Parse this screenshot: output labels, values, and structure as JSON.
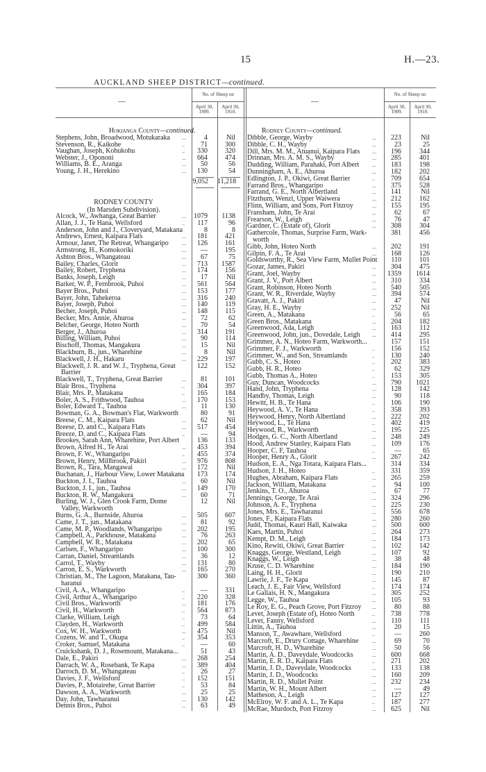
{
  "header": {
    "page_number": "15",
    "doc_ref": "H.—23.",
    "title": "AUCKLAND SHEEP DISTRICT",
    "title_suffix": "—continued."
  },
  "table_header": {
    "name_col": "—",
    "group": "No. of Sheep on",
    "col1_line1": "April 30,",
    "col1_line2": "1909.",
    "col2_line1": "April 30,",
    "col2_line2": "1910."
  },
  "left": {
    "heading_main": "Hokianga County",
    "heading_suffix": "—continued.",
    "rows": [
      [
        "Stephens, John, Broadwood, Motukaraka",
        "...",
        "4",
        "Nil"
      ],
      [
        "Stevenson, R., Kaikohe",
        "..",
        "71",
        "300"
      ],
      [
        "Vaughan, Joseph, Kohukohu",
        "..",
        "330",
        "320"
      ],
      [
        "Webster, J., Opononi",
        "...",
        "664",
        "474"
      ],
      [
        "Williams, B. E., Aranga",
        "...",
        "50",
        "56"
      ],
      [
        "Young, J. H., Herekino",
        "...",
        "130",
        "54"
      ]
    ],
    "total": [
      "9,052",
      "11,218"
    ],
    "county": "RODNEY COUNTY",
    "subdivision": "(In Marsden Subdivision).",
    "rows2": [
      [
        "Alcock, W., Awhanga, Great Barrier",
        "...",
        "1079",
        "1138"
      ],
      [
        "Allan, J. J., Te Hana, Wellsford",
        "..",
        "117",
        "96"
      ],
      [
        "Anderson, John and J., Cloveryard, Matakana",
        "",
        "8",
        "8"
      ],
      [
        "Andrews, Ernest, Kaipara Flats",
        "...",
        "181",
        "421"
      ],
      [
        "Armour, Janet, The Retreat, Whangaripo",
        "...",
        "126",
        "161"
      ],
      [
        "Armstrong, H., Komokoriki",
        "...",
        "—",
        "195"
      ],
      [
        "Ashton Bros., Whangateau",
        "...",
        "67",
        "75"
      ],
      [
        "Bailey, Charles, Glorit",
        "...",
        "713",
        "1587"
      ],
      [
        "Bailey, Robert, Tryphena",
        "...",
        "174",
        "156"
      ],
      [
        "Banks, Joseph, Leigh",
        "...",
        "17",
        "Nil"
      ],
      [
        "Barker, W. P., Fernbrook, Puhoi",
        "...",
        "561",
        "564"
      ],
      [
        "Bayer Bros., Puhoi",
        "...",
        "153",
        "177"
      ],
      [
        "Bayer, John, Tahekeroa",
        "...",
        "316",
        "240"
      ],
      [
        "Bayer, Joseph, Puhoi",
        "...",
        "140",
        "119"
      ],
      [
        "Becher, Joseph, Puhoi",
        "...",
        "148",
        "115"
      ],
      [
        "Becker, Mrs. Annie, Ahuroa",
        "...",
        "72",
        "62"
      ],
      [
        "Belcher, George, Hoteo North",
        "...",
        "70",
        "54"
      ],
      [
        "Berger, J., Ahuroa",
        "...",
        "314",
        "191"
      ],
      [
        "Billing, William, Puhoi",
        "...",
        "90",
        "114"
      ],
      [
        "Bischoff, Thomas, Mangakura",
        "...",
        "15",
        "Nil"
      ],
      [
        "Blackburn, B., jun., Wharehine",
        "...",
        "8",
        "Nil"
      ],
      [
        "Blackwell, J. H., Hakaru",
        "...",
        "229",
        "197"
      ],
      [
        "Blackwell, J. R. and W. J., Tryphena, Great",
        "",
        "122",
        "152",
        "Barrier"
      ],
      [
        "Blackwell, T., Tryphena, Great Barrier",
        "...",
        "81",
        "101"
      ],
      [
        "Blair Bros., Tryphena",
        "..",
        "304",
        "397"
      ],
      [
        "Blair, Mrs. P., Matakana",
        "..",
        "165",
        "184"
      ],
      [
        "Boler, A. S., Frithwood, Tauhoa",
        "...",
        "170",
        "153"
      ],
      [
        "Boler, Edward T., Tauhoa",
        "...",
        "11",
        "130"
      ],
      [
        "Bowman, G. A., Bowman's Flat, Warkworth",
        "",
        "80",
        "91"
      ],
      [
        "Breese, C. M., Kaipara Flats",
        "...",
        "62",
        "Nil"
      ],
      [
        "Breese, D. and C., Kaipara Flats",
        "...",
        "517",
        "454"
      ],
      [
        "Breeze, D. and C., Kaipara Flats",
        "..",
        "—",
        "94"
      ],
      [
        "Brookes, Sarah Ann, Wharehine, Port Albert",
        "",
        "136",
        "133"
      ],
      [
        "Brown, Alfred H., Te Arai",
        "...",
        "453",
        "394"
      ],
      [
        "Brown, F. W., Whangaripo",
        "..",
        "455",
        "374"
      ],
      [
        "Brown, Henry, Millbrook, Pakiri",
        "...",
        "976",
        "808"
      ],
      [
        "Brown, R., Tara, Mangawai",
        "...",
        "172",
        "Nil"
      ],
      [
        "Buchanan, J., Harbour View, Lower Matakana",
        "",
        "173",
        "174"
      ],
      [
        "Buckton, J. I., Tauhoa",
        "...",
        "60",
        "Nil"
      ],
      [
        "Buckton, J. I., jun., Tauhoa",
        "...",
        "149",
        "170"
      ],
      [
        "Buckton, R. W., Mangakura",
        "...",
        "60",
        "71"
      ],
      [
        "Burling, W. J., Glen Crook Farm, Dome",
        "",
        "12",
        "Nil",
        "Valley, Warkworth"
      ],
      [
        "Burns, G. A., Burnside, Ahuroa",
        "...",
        "505",
        "607"
      ],
      [
        "Came, J. T., jun., Matakana",
        "...",
        "81",
        "92"
      ],
      [
        "Came, M. P., Woodlands, Whangaripo",
        "...",
        "202",
        "195"
      ],
      [
        "Campbell, A., Parkhouse, Matakana",
        "...",
        "76",
        "263"
      ],
      [
        "Campbell, W. R., Matakana",
        "...",
        "202",
        "65"
      ],
      [
        "Carlsen, F., Whangaripo",
        "...",
        "100",
        "300"
      ],
      [
        "Carran, Daniel, Streamlands",
        "...",
        "36",
        "12"
      ],
      [
        "Carrol, T., Wayby",
        "...",
        "131",
        "80"
      ],
      [
        "Carron, E. S., Warkworth",
        "...",
        "165",
        "270"
      ],
      [
        "Christian, M., The Lagoon, Matakana, Tau-",
        "",
        "300",
        "360",
        "haranui"
      ],
      [
        "Civil, A. A., Whangaripo",
        "..",
        "—",
        "331"
      ],
      [
        "Civil, Arthur A., Whangaripo",
        "..",
        "220",
        "328"
      ],
      [
        "Civil Bros., Warkworth",
        "...",
        "181",
        "176"
      ],
      [
        "Civil, H., Warkworth",
        "..",
        "564",
        "873"
      ],
      [
        "Clarke, William, Leigh",
        "..",
        "73",
        "64"
      ],
      [
        "Clayden, H., Warkworth",
        "..",
        "499",
        "584"
      ],
      [
        "Cox, W. H., Warkworth",
        "...",
        "475",
        "Nil"
      ],
      [
        "Cozens, W. and T., Okupa",
        "..",
        "354",
        "353"
      ],
      [
        "Croker, Samuel, Matakana",
        "..",
        "—",
        "60"
      ],
      [
        "Cruickshank, D. J., Rosemount, Matakana...",
        "",
        "51",
        "43"
      ],
      [
        "Dale, E., Pakiri",
        "...",
        "268",
        "254"
      ],
      [
        "Darrach, W. A., Rosebank, Te Kapa",
        "...",
        "389",
        "404"
      ],
      [
        "Darroch, D. M., Whangateau",
        "..",
        "26",
        "27"
      ],
      [
        "Davies, J. F., Wellsford",
        "..",
        "152",
        "151"
      ],
      [
        "Davies, P., Motairehe, Great Barrier",
        "..",
        "53",
        "84"
      ],
      [
        "Dawson, A. A., Warkworth",
        "...",
        "25",
        "25"
      ],
      [
        "Day, John, Tawharanui",
        "...",
        "130",
        "142"
      ],
      [
        "Dennis Bros., Puhoi",
        "...",
        "63",
        "49"
      ]
    ]
  },
  "right": {
    "heading_main": "Rodney County",
    "heading_suffix": "—continued.",
    "rows": [
      [
        "Dibble, George, Wayby",
        "...",
        "223",
        "Nil"
      ],
      [
        "Dibble, C. H., Wayby",
        "...",
        "23",
        "25"
      ],
      [
        "Dill, Mrs. M. M., Atuanui, Kaipara Flats",
        "...",
        "196",
        "344"
      ],
      [
        "Drinnan, Mrs. A. M. S., Wayby",
        "...",
        "285",
        "401"
      ],
      [
        "Dudding, William, Parahaki, Port Albert",
        "...",
        "183",
        "198"
      ],
      [
        "Dunningham, A. E., Ahuroa",
        "...",
        "182",
        "202"
      ],
      [
        "Edlington, J. P., Okiwi, Great Barrier",
        "..",
        "709",
        "654"
      ],
      [
        "Farrand Bros., Whangaripo",
        "...",
        "375",
        "528"
      ],
      [
        "Farrand, G. E., North Albertland",
        "...",
        "141",
        "Nil"
      ],
      [
        "Fitzthum, Wenzl, Upper Waiwera",
        "...",
        "212",
        "162"
      ],
      [
        "Flinn, William, and Sons, Port Fitzroy",
        "...",
        "155",
        "195"
      ],
      [
        "Fransham, John, Te Arai",
        "...",
        "62",
        "67"
      ],
      [
        "Frearson, W., Leigh",
        "...",
        "76",
        "47"
      ],
      [
        "Gardner, C. (Estate of), Glorit",
        "...",
        "308",
        "304"
      ],
      [
        "Gathercole, Thomas, Surprise Farm, Wark-",
        "",
        "381",
        "456",
        "worth"
      ],
      [
        "Gibb, John, Hoteo North",
        "...",
        "202",
        "191"
      ],
      [
        "Gilpin, F. A., Te Arai",
        "...",
        "168",
        "126"
      ],
      [
        "Goldsworthy, R., Sea View Farm, Mullet Point",
        "",
        "110",
        "101"
      ],
      [
        "Gozar, James, Pakiri",
        "...",
        "304",
        "475"
      ],
      [
        "Grant, Joel, Wayby",
        "...",
        "1359",
        "1614"
      ],
      [
        "Grant, J. V., Port Albert",
        "...",
        "310",
        "334"
      ],
      [
        "Grant, Robinson, Hoteo North",
        "...",
        "540",
        "505"
      ],
      [
        "Grant, W. R., Riverdale, Wayby",
        "...",
        "394",
        "574"
      ],
      [
        "Gravatt, A. J., Pakiri",
        "...",
        "47",
        "Nil"
      ],
      [
        "Gray, H. E., Wayby",
        "...",
        "252",
        "Nil"
      ],
      [
        "Green, A., Matakana",
        "..",
        "56",
        "65"
      ],
      [
        "Green Bros., Matakana",
        "...",
        "204",
        "182"
      ],
      [
        "Greenwood, Ada, Leigh",
        "...",
        "163",
        "112"
      ],
      [
        "Greenwood, John, jun., Dovedale, Leigh",
        "...",
        "414",
        "295"
      ],
      [
        "Grimmer, A. N., Hoteo Farm, Warkworth...",
        "",
        "157",
        "151"
      ],
      [
        "Grimmer, F. J., Warkworth",
        "..",
        "156",
        "152"
      ],
      [
        "Grimmer, W., and Son, Streamlands",
        "..",
        "130",
        "240"
      ],
      [
        "Gubb, C. S., Hoteo",
        "..",
        "202",
        "383"
      ],
      [
        "Gubb, H. R., Hoteo",
        "..",
        "62",
        "329"
      ],
      [
        "Gubb, Thomas A., Hoteo",
        "..",
        "153",
        "305"
      ],
      [
        "Guy, Duncan, Woodcocks",
        "...",
        "790",
        "1021"
      ],
      [
        "Hand, John, Tryphena",
        "...",
        "128",
        "142"
      ],
      [
        "Handby, Thomas, Leigh",
        "...",
        "90",
        "118"
      ],
      [
        "Hewitt, H. B., Te Hana",
        "..",
        "106",
        "190"
      ],
      [
        "Heywood, A. V., Te Hana",
        "..",
        "358",
        "393"
      ],
      [
        "Heywood, Henry, North Albertland",
        "...",
        "222",
        "202"
      ],
      [
        "Heywood, L., Te Hana",
        "..",
        "402",
        "419"
      ],
      [
        "Heywood, R., Warkworth",
        "...",
        "195",
        "225"
      ],
      [
        "Hodges, G. C., North Albertland",
        "...",
        "248",
        "249"
      ],
      [
        "Hood, Andrew Stanley, Kaipara Flats",
        "...",
        "109",
        "176"
      ],
      [
        "Hooper, C. F, Tauhoa",
        "..",
        "—",
        "65"
      ],
      [
        "Hooper, Henry A., Glorit",
        "...",
        "267",
        "242"
      ],
      [
        "Hudson, E. A., Nga Totara, Kaipara Flats...",
        "",
        "314",
        "334"
      ],
      [
        "Hudson, J. H., Hoteo",
        "..",
        "331",
        "359"
      ],
      [
        "Hughes, Abraham, Kaipara Flats",
        "...",
        "265",
        "259"
      ],
      [
        "Jackson, William, Matakana",
        "...",
        "94",
        "100"
      ],
      [
        "Jenkins, T. O., Ahuroa",
        "...",
        "67",
        "77"
      ],
      [
        "Jennings, George, Te Arai",
        "...",
        "324",
        "296"
      ],
      [
        "Johnson, A. F., Tryphena",
        "...",
        "225",
        "230"
      ],
      [
        "Jones, Mrs. E., Tawharanui",
        "...",
        "556",
        "678"
      ],
      [
        "Jones, F., Kaipara Flats",
        "...",
        "280",
        "260"
      ],
      [
        "Judd, Thomas, Kauri Hall, Kaiwaka",
        "...",
        "500",
        "600"
      ],
      [
        "Kaes, Martin, Puhoi",
        "...",
        "264",
        "273"
      ],
      [
        "Kempt, D. M., Leigh",
        "...",
        "184",
        "173"
      ],
      [
        "Kino, Rewiti, Okiwi, Great Barrier",
        "...",
        "102",
        "142"
      ],
      [
        "Knaggs, George, Westland, Leigh",
        "...",
        "107",
        "92"
      ],
      [
        "Knaggs, W., Leigh",
        "...",
        "38",
        "48"
      ],
      [
        "Kruse, C. D. Wharehine",
        "...",
        "184",
        "190"
      ],
      [
        "Laing, H. H., Glorit",
        "...",
        "190",
        "210"
      ],
      [
        "Lawrie, J. F., Te Kapa",
        "...",
        "145",
        "87"
      ],
      [
        "Leach, J. E., Fair View, Wellsford",
        "..",
        "174",
        "174"
      ],
      [
        "Le Gallais, H. N., Mangakura",
        "...",
        "305",
        "252"
      ],
      [
        "Legge, W., Tauhoa",
        "...",
        "105",
        "93"
      ],
      [
        "Le Roy, E. G., Peach Grove, Port Fitzroy",
        "...",
        "80",
        "88"
      ],
      [
        "Levet, Joseph (Estate of), Hoteo North",
        "..",
        "738",
        "778"
      ],
      [
        "Levet, Fanny, Wellsford",
        "...",
        "110",
        "111"
      ],
      [
        "Littin, A., Tauhoa",
        "...",
        "20",
        "15"
      ],
      [
        "Manson, T., Awawhare, Wellsford",
        "..",
        "—",
        "260"
      ],
      [
        "Marcroft, E., Drury Cottage, Wharehine",
        "...",
        "69",
        "70"
      ],
      [
        "Marcroft, H. D., Wharehine",
        "...",
        "50",
        "56"
      ],
      [
        "Martin, A. D., Daveydale, Woodcocks",
        "...",
        "600",
        "668"
      ],
      [
        "Martin, E. R. D., Kaipara Flats",
        "..",
        "271",
        "202"
      ],
      [
        "Martin, J. D., Daveydale, Woodcocks",
        "...",
        "133",
        "138"
      ],
      [
        "Martin, J. D., Woodcocks",
        "...",
        "160",
        "209"
      ],
      [
        "Martin, R. D., Mullet Point",
        "...",
        "232",
        "234"
      ],
      [
        "Martin, W. H., Mount Albert",
        "...",
        "—",
        "49"
      ],
      [
        "Matheson, A., Leigh",
        "...",
        "127",
        "127"
      ],
      [
        "McElroy, W. F. and A. L., Te Kapa",
        "..",
        "187",
        "277"
      ],
      [
        "McRae, Murdoch, Port Fitzroy",
        "...",
        "625",
        "Nil"
      ]
    ]
  }
}
